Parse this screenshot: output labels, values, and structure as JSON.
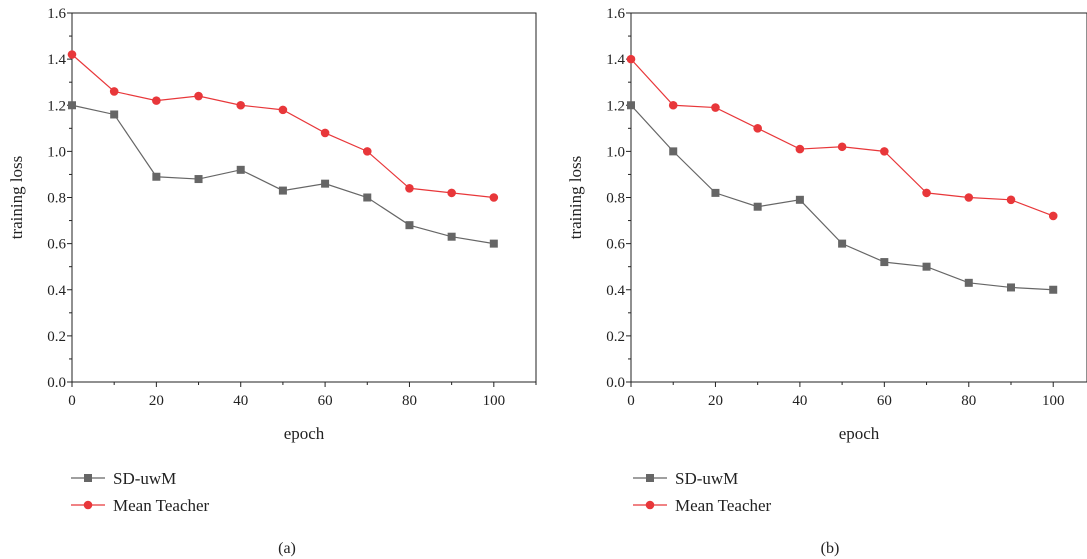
{
  "chart_data": [
    {
      "type": "line",
      "caption": "(a)",
      "xlabel": "epoch",
      "ylabel": "training loss",
      "xlim": [
        0,
        110
      ],
      "ylim": [
        0,
        1.6
      ],
      "x_ticks": [
        "0",
        "20",
        "40",
        "60",
        "80",
        "100"
      ],
      "y_ticks": [
        "0.0",
        "0.2",
        "0.4",
        "0.6",
        "0.8",
        "1.0",
        "1.2",
        "1.4",
        "1.6"
      ],
      "x": [
        0,
        10,
        20,
        30,
        40,
        50,
        60,
        70,
        80,
        90,
        100
      ],
      "grid": false,
      "legend_position": "below",
      "series": [
        {
          "name": "SD-uwM",
          "color": "#666666",
          "marker": "square",
          "values": [
            1.2,
            1.16,
            0.89,
            0.88,
            0.92,
            0.83,
            0.86,
            0.8,
            0.68,
            0.63,
            0.6
          ]
        },
        {
          "name": "Mean Teacher",
          "color": "#e8373a",
          "marker": "circle",
          "values": [
            1.42,
            1.26,
            1.22,
            1.24,
            1.2,
            1.18,
            1.08,
            1.0,
            0.84,
            0.82,
            0.8
          ]
        }
      ]
    },
    {
      "type": "line",
      "caption": "(b)",
      "xlabel": "epoch",
      "ylabel": "training loss",
      "xlim": [
        0,
        108
      ],
      "ylim": [
        0,
        1.6
      ],
      "x_ticks": [
        "0",
        "20",
        "40",
        "60",
        "80",
        "100"
      ],
      "y_ticks": [
        "0.0",
        "0.2",
        "0.4",
        "0.6",
        "0.8",
        "1.0",
        "1.2",
        "1.4",
        "1.6"
      ],
      "x": [
        0,
        10,
        20,
        30,
        40,
        50,
        60,
        70,
        80,
        90,
        100
      ],
      "grid": false,
      "legend_position": "below",
      "series": [
        {
          "name": "SD-uwM",
          "color": "#666666",
          "marker": "square",
          "values": [
            1.2,
            1.0,
            0.82,
            0.76,
            0.79,
            0.6,
            0.52,
            0.5,
            0.43,
            0.41,
            0.4
          ]
        },
        {
          "name": "Mean Teacher",
          "color": "#e8373a",
          "marker": "circle",
          "values": [
            1.4,
            1.2,
            1.19,
            1.1,
            1.01,
            1.02,
            1.0,
            0.82,
            0.8,
            0.79,
            0.72
          ]
        }
      ]
    }
  ]
}
